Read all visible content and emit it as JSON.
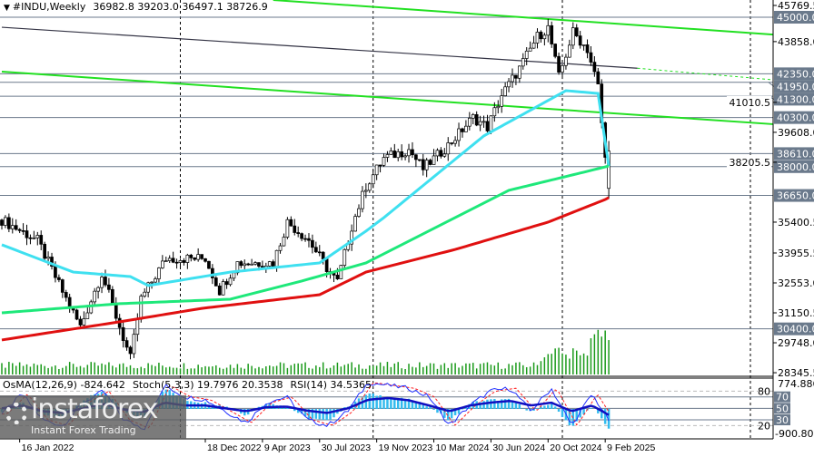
{
  "header": {
    "symbol": "#INDU,Weekly",
    "ohlc": "36982.8 39203.0 36497.1 38726.9"
  },
  "indicator_header": {
    "osma": "OsMA(12,26,9) -824.642",
    "stoch": "Stoch(5,3,3) 19.7976 20.3538",
    "rsi": "RSI(14) 34.5365"
  },
  "logo": {
    "brand": "instaforex",
    "tagline": "Instant Forex Trading"
  },
  "colors": {
    "ma_fast": "#3fe0f0",
    "ma_mid": "#1ee87a",
    "ma_slow": "#e01010",
    "trend": "#22e022",
    "level": "#6b7a8c",
    "volume": "#1a9a1a",
    "osma": "#33bbee",
    "rsi": "#1010c0",
    "stoch_main": "#2030ff",
    "stoch_signal": "#ff2020"
  },
  "chart_data": {
    "type": "candlestick",
    "title": "#INDU,Weekly",
    "weeks_total": 171,
    "ylim": [
      28345.5,
      45769.5
    ],
    "y_ticks": [
      "45769.5",
      "43858.0",
      "41010.5",
      "39608.0",
      "38205.5",
      "35400.5",
      "33955.5",
      "32553.0",
      "31150.5",
      "29748.0",
      "28345.5"
    ],
    "y_tick_values": [
      45769.5,
      43858.0,
      41010.5,
      39608.0,
      38205.5,
      35400.5,
      33955.5,
      32553.0,
      31150.5,
      29748.0,
      28345.5
    ],
    "x_ticks": [
      {
        "week": 5,
        "label": "16 Jan 2022"
      },
      {
        "week": 57,
        "label": "18 Dec 2022"
      },
      {
        "week": 73,
        "label": "9 Apr 2023"
      },
      {
        "week": 89,
        "label": "30 Jul 2023"
      },
      {
        "week": 105,
        "label": "19 Nov 2023"
      },
      {
        "week": 121,
        "label": "10 Mar 2024"
      },
      {
        "week": 137,
        "label": "30 Jun 2024"
      },
      {
        "week": 153,
        "label": "20 Oct 2024"
      },
      {
        "week": 169,
        "label": "9 Feb 2025"
      }
    ],
    "period_separators_weeks": [
      50,
      104,
      157,
      210
    ],
    "close_path": [
      [
        0,
        35500
      ],
      [
        10,
        34550
      ],
      [
        18,
        31800
      ],
      [
        22,
        30500
      ],
      [
        28,
        33000
      ],
      [
        36,
        29000
      ],
      [
        39,
        31800
      ],
      [
        46,
        33700
      ],
      [
        57,
        33700
      ],
      [
        61,
        32200
      ],
      [
        66,
        33500
      ],
      [
        76,
        33500
      ],
      [
        80,
        35400
      ],
      [
        86,
        34550
      ],
      [
        92,
        33000
      ],
      [
        94,
        32600
      ],
      [
        98,
        35200
      ],
      [
        102,
        37100
      ],
      [
        107,
        38400
      ],
      [
        114,
        38800
      ],
      [
        118,
        37900
      ],
      [
        125,
        39000
      ],
      [
        132,
        40300
      ],
      [
        136,
        39850
      ],
      [
        140,
        41350
      ],
      [
        145,
        42600
      ],
      [
        150,
        44100
      ],
      [
        153,
        44500
      ],
      [
        156,
        42200
      ],
      [
        160,
        44300
      ],
      [
        164,
        43500
      ],
      [
        167,
        41750
      ],
      [
        169,
        38350
      ],
      [
        170,
        38727
      ]
    ],
    "last_candle": {
      "open": 36982.8,
      "high": 39203.0,
      "low": 36497.1,
      "close": 38726.9
    },
    "moving_averages": [
      {
        "name": "MA fast",
        "color_key": "ma_fast",
        "points": [
          [
            0,
            34340
          ],
          [
            20,
            33060
          ],
          [
            36,
            32850
          ],
          [
            41,
            32430
          ],
          [
            64,
            33060
          ],
          [
            89,
            33490
          ],
          [
            102,
            34980
          ],
          [
            107,
            35610
          ],
          [
            135,
            39440
          ],
          [
            158,
            41560
          ],
          [
            167,
            41430
          ],
          [
            170,
            38030
          ]
        ]
      },
      {
        "name": "MA mid",
        "color_key": "ma_mid",
        "points": [
          [
            0,
            31150
          ],
          [
            33,
            31580
          ],
          [
            64,
            31790
          ],
          [
            84,
            32640
          ],
          [
            102,
            33490
          ],
          [
            122,
            35190
          ],
          [
            142,
            36890
          ],
          [
            163,
            37740
          ],
          [
            170,
            38030
          ]
        ]
      },
      {
        "name": "MA slow",
        "color_key": "ma_slow",
        "points": [
          [
            0,
            29880
          ],
          [
            33,
            30730
          ],
          [
            56,
            31360
          ],
          [
            89,
            32000
          ],
          [
            102,
            33060
          ],
          [
            127,
            34120
          ],
          [
            153,
            35400
          ],
          [
            169,
            36460
          ],
          [
            170,
            36550
          ]
        ]
      }
    ],
    "trendlines": [
      {
        "name": "resistance-upper",
        "color_key": "trend",
        "from": [
          76,
          45807
        ],
        "to": [
          228,
          44190
        ],
        "dashed": false
      },
      {
        "name": "resistance-lower",
        "color_key": "trend",
        "from": [
          0,
          42450
        ],
        "to": [
          228,
          39990
        ],
        "dashed": false
      },
      {
        "name": "channel-line",
        "color_key": "level",
        "from": [
          0,
          44530
        ],
        "to": [
          228,
          42070
        ],
        "dashed_after_week": 178
      }
    ],
    "levels": [
      "45000.0",
      "42350.0",
      "41950.0",
      "41300.0",
      "40300.0",
      "38610.0",
      "38000.0",
      "36650.0",
      "30400.0"
    ],
    "level_values": [
      45000,
      42350,
      41950,
      41300,
      40300,
      38610,
      38000,
      36650,
      30400
    ],
    "oscillator": {
      "ylim_labels": [
        "774.886",
        "-900.809"
      ],
      "levels": [
        "80",
        "70",
        "50",
        "30",
        "20"
      ],
      "level_values": [
        80,
        70,
        50,
        30,
        20
      ],
      "sample_step_weeks": 5.7,
      "stoch_main": [
        40,
        75,
        30,
        20,
        60,
        80,
        30,
        15,
        90,
        70,
        65,
        45,
        25,
        60,
        70,
        30,
        20,
        45,
        95,
        90,
        85,
        70,
        20,
        55,
        80,
        85,
        45,
        85,
        20,
        75,
        20
      ],
      "rsi": [
        50,
        55,
        45,
        42,
        50,
        58,
        48,
        44,
        60,
        55,
        55,
        50,
        45,
        52,
        53,
        46,
        42,
        50,
        65,
        68,
        64,
        55,
        45,
        55,
        60,
        63,
        55,
        60,
        45,
        55,
        35
      ],
      "osma": [
        -100,
        200,
        -200,
        -300,
        300,
        600,
        -100,
        -300,
        700,
        300,
        200,
        100,
        -200,
        200,
        100,
        -300,
        -400,
        100,
        500,
        400,
        300,
        100,
        -400,
        200,
        300,
        300,
        -100,
        200,
        -600,
        100,
        -824
      ]
    }
  }
}
